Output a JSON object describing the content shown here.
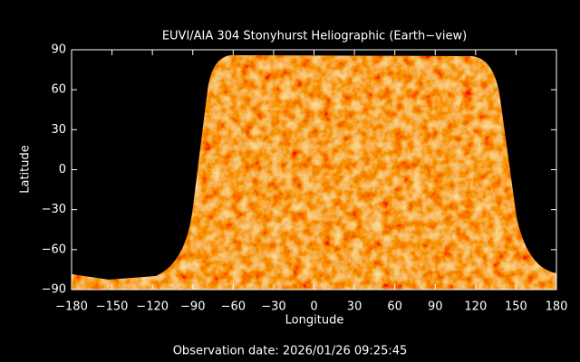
{
  "chart_data": {
    "type": "image",
    "title": "EUVI/AIA 304 Stonyhurst Heliographic (Earth−view)",
    "xlabel": "Longitude",
    "ylabel": "Latitude",
    "xlim": [
      -180,
      180
    ],
    "ylim": [
      -90,
      90
    ],
    "xticks": [
      {
        "value": -180,
        "label": "−180"
      },
      {
        "value": -150,
        "label": "−150"
      },
      {
        "value": -120,
        "label": "−120"
      },
      {
        "value": -90,
        "label": "−90"
      },
      {
        "value": -60,
        "label": "−60"
      },
      {
        "value": -30,
        "label": "−30"
      },
      0,
      30,
      60,
      90,
      120,
      150,
      180
    ],
    "yticks": [
      {
        "value": -90,
        "label": "−90"
      },
      {
        "value": -60,
        "label": "−60"
      },
      {
        "value": -30,
        "label": "−30"
      },
      0,
      30,
      60,
      90
    ],
    "annotation": "Observation date: 2026/01/26 09:25:45"
  }
}
